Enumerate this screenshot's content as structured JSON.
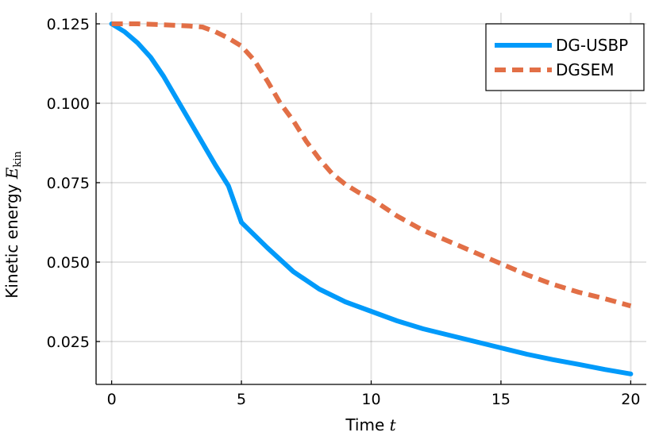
{
  "chart_data": {
    "type": "line",
    "xlabel": "Time",
    "xlabel_var": "t",
    "ylabel": "Kinetic energy",
    "ylabel_var": "E",
    "ylabel_sub": "kin",
    "xlim": [
      -0.6,
      20.6
    ],
    "ylim": [
      0.0115,
      0.1285
    ],
    "xticks": [
      0,
      5,
      10,
      15,
      20
    ],
    "xtick_labels": [
      "0",
      "5",
      "10",
      "15",
      "20"
    ],
    "yticks": [
      0.025,
      0.05,
      0.075,
      0.1,
      0.125
    ],
    "ytick_labels": [
      "0.025",
      "0.050",
      "0.075",
      "0.100",
      "0.125"
    ],
    "grid": true,
    "legend_position": "top-right",
    "series": [
      {
        "name": "DG-USBP",
        "style": "solid",
        "color": "#009AFA",
        "x": [
          0,
          0.5,
          1,
          1.5,
          2,
          2.5,
          3,
          3.5,
          4,
          4.5,
          5,
          6,
          7,
          8,
          9,
          10,
          11,
          12,
          13,
          14,
          15,
          16,
          17,
          18,
          19,
          20
        ],
        "y": [
          0.125,
          0.1225,
          0.119,
          0.1145,
          0.1085,
          0.1015,
          0.0945,
          0.0875,
          0.0805,
          0.074,
          0.0625,
          0.0545,
          0.047,
          0.0415,
          0.0375,
          0.0345,
          0.0315,
          0.029,
          0.027,
          0.025,
          0.023,
          0.021,
          0.0193,
          0.0178,
          0.0162,
          0.0148
        ]
      },
      {
        "name": "DGSEM",
        "style": "dashed",
        "color": "#E26F46",
        "x": [
          0,
          1,
          2,
          3,
          3.5,
          4,
          4.5,
          5,
          5.5,
          6,
          6.5,
          7,
          7.5,
          8,
          8.5,
          9,
          9.5,
          10,
          11,
          12,
          13,
          14,
          15,
          16,
          17,
          18,
          19,
          20
        ],
        "y": [
          0.125,
          0.125,
          0.1247,
          0.1243,
          0.124,
          0.1225,
          0.1205,
          0.118,
          0.1135,
          0.107,
          0.1,
          0.0945,
          0.088,
          0.0825,
          0.0778,
          0.0745,
          0.072,
          0.07,
          0.0645,
          0.06,
          0.0565,
          0.053,
          0.0495,
          0.046,
          0.043,
          0.0405,
          0.0385,
          0.0362
        ]
      }
    ]
  }
}
